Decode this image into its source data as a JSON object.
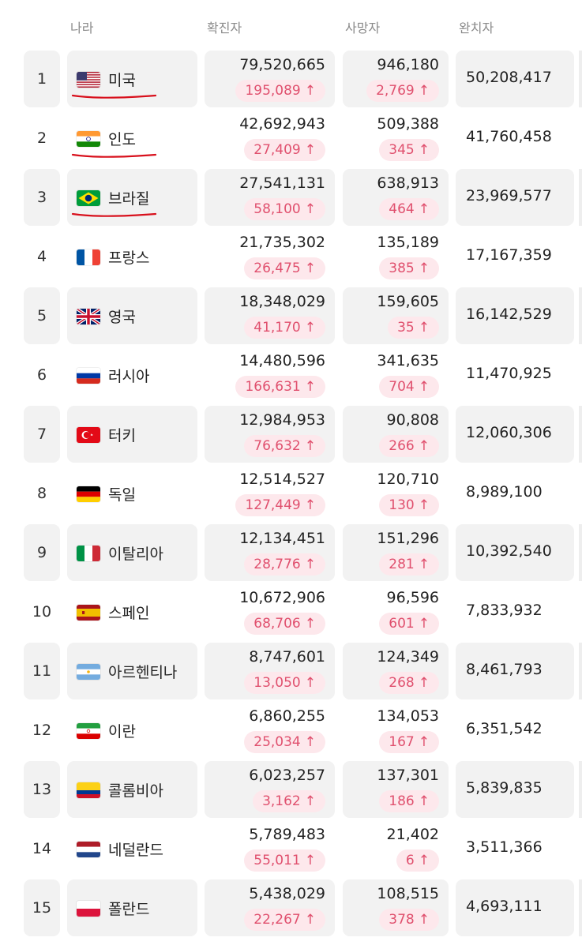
{
  "header": {
    "country": "나라",
    "confirmed": "확진자",
    "deaths": "사망자",
    "recovered": "완치자"
  },
  "accent_color": "#e0506e",
  "rows": [
    {
      "rank": "1",
      "country": "미국",
      "flag_icon": "us-flag-icon",
      "confirmed": "79,520,665",
      "confirmed_new": "195,089",
      "deaths": "946,180",
      "deaths_new": "2,769",
      "recovered": "50,208,417",
      "underlined": true
    },
    {
      "rank": "2",
      "country": "인도",
      "flag_icon": "india-flag-icon",
      "confirmed": "42,692,943",
      "confirmed_new": "27,409",
      "deaths": "509,388",
      "deaths_new": "345",
      "recovered": "41,760,458",
      "underlined": true
    },
    {
      "rank": "3",
      "country": "브라질",
      "flag_icon": "brazil-flag-icon",
      "confirmed": "27,541,131",
      "confirmed_new": "58,100",
      "deaths": "638,913",
      "deaths_new": "464",
      "recovered": "23,969,577",
      "underlined": true
    },
    {
      "rank": "4",
      "country": "프랑스",
      "flag_icon": "france-flag-icon",
      "confirmed": "21,735,302",
      "confirmed_new": "26,475",
      "deaths": "135,189",
      "deaths_new": "385",
      "recovered": "17,167,359"
    },
    {
      "rank": "5",
      "country": "영국",
      "flag_icon": "uk-flag-icon",
      "confirmed": "18,348,029",
      "confirmed_new": "41,170",
      "deaths": "159,605",
      "deaths_new": "35",
      "recovered": "16,142,529"
    },
    {
      "rank": "6",
      "country": "러시아",
      "flag_icon": "russia-flag-icon",
      "confirmed": "14,480,596",
      "confirmed_new": "166,631",
      "deaths": "341,635",
      "deaths_new": "704",
      "recovered": "11,470,925"
    },
    {
      "rank": "7",
      "country": "터키",
      "flag_icon": "turkey-flag-icon",
      "confirmed": "12,984,953",
      "confirmed_new": "76,632",
      "deaths": "90,808",
      "deaths_new": "266",
      "recovered": "12,060,306"
    },
    {
      "rank": "8",
      "country": "독일",
      "flag_icon": "germany-flag-icon",
      "confirmed": "12,514,527",
      "confirmed_new": "127,449",
      "deaths": "120,710",
      "deaths_new": "130",
      "recovered": "8,989,100"
    },
    {
      "rank": "9",
      "country": "이탈리아",
      "flag_icon": "italy-flag-icon",
      "confirmed": "12,134,451",
      "confirmed_new": "28,776",
      "deaths": "151,296",
      "deaths_new": "281",
      "recovered": "10,392,540"
    },
    {
      "rank": "10",
      "country": "스페인",
      "flag_icon": "spain-flag-icon",
      "confirmed": "10,672,906",
      "confirmed_new": "68,706",
      "deaths": "96,596",
      "deaths_new": "601",
      "recovered": "7,833,932"
    },
    {
      "rank": "11",
      "country": "아르헨티나",
      "flag_icon": "argentina-flag-icon",
      "confirmed": "8,747,601",
      "confirmed_new": "13,050",
      "deaths": "124,349",
      "deaths_new": "268",
      "recovered": "8,461,793"
    },
    {
      "rank": "12",
      "country": "이란",
      "flag_icon": "iran-flag-icon",
      "confirmed": "6,860,255",
      "confirmed_new": "25,034",
      "deaths": "134,053",
      "deaths_new": "167",
      "recovered": "6,351,542"
    },
    {
      "rank": "13",
      "country": "콜롬비아",
      "flag_icon": "colombia-flag-icon",
      "confirmed": "6,023,257",
      "confirmed_new": "3,162",
      "deaths": "137,301",
      "deaths_new": "186",
      "recovered": "5,839,835"
    },
    {
      "rank": "14",
      "country": "네덜란드",
      "flag_icon": "netherlands-flag-icon",
      "confirmed": "5,789,483",
      "confirmed_new": "55,011",
      "deaths": "21,402",
      "deaths_new": "6",
      "recovered": "3,511,366"
    },
    {
      "rank": "15",
      "country": "폴란드",
      "flag_icon": "poland-flag-icon",
      "confirmed": "5,438,029",
      "confirmed_new": "22,267",
      "deaths": "108,515",
      "deaths_new": "378",
      "recovered": "4,693,111"
    }
  ],
  "increase_symbol": "↑"
}
